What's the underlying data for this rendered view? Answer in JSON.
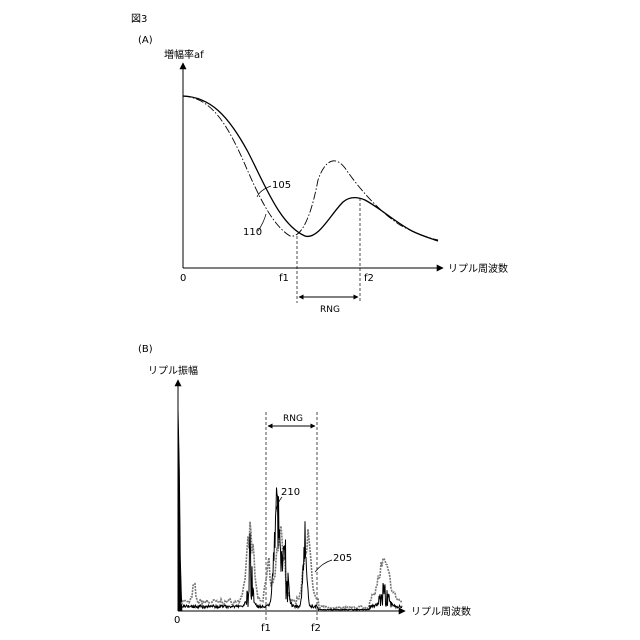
{
  "figure_label": "図3",
  "panel_a": {
    "panel_label": "(A)",
    "y_axis_label": "増幅率af",
    "x_axis_label": "リプル周波数",
    "origin_label": "0",
    "f1_label": "f1",
    "f2_label": "f2",
    "range_label": "RNG",
    "curve_105_label": "105",
    "curve_110_label": "110"
  },
  "panel_b": {
    "panel_label": "(B)",
    "y_axis_label": "リプル振幅",
    "x_axis_label": "リプル周波数",
    "origin_label": "0",
    "f1_label": "f1",
    "f2_label": "f2",
    "range_label": "RNG",
    "curve_210_label": "210",
    "curve_205_label": "205"
  }
}
